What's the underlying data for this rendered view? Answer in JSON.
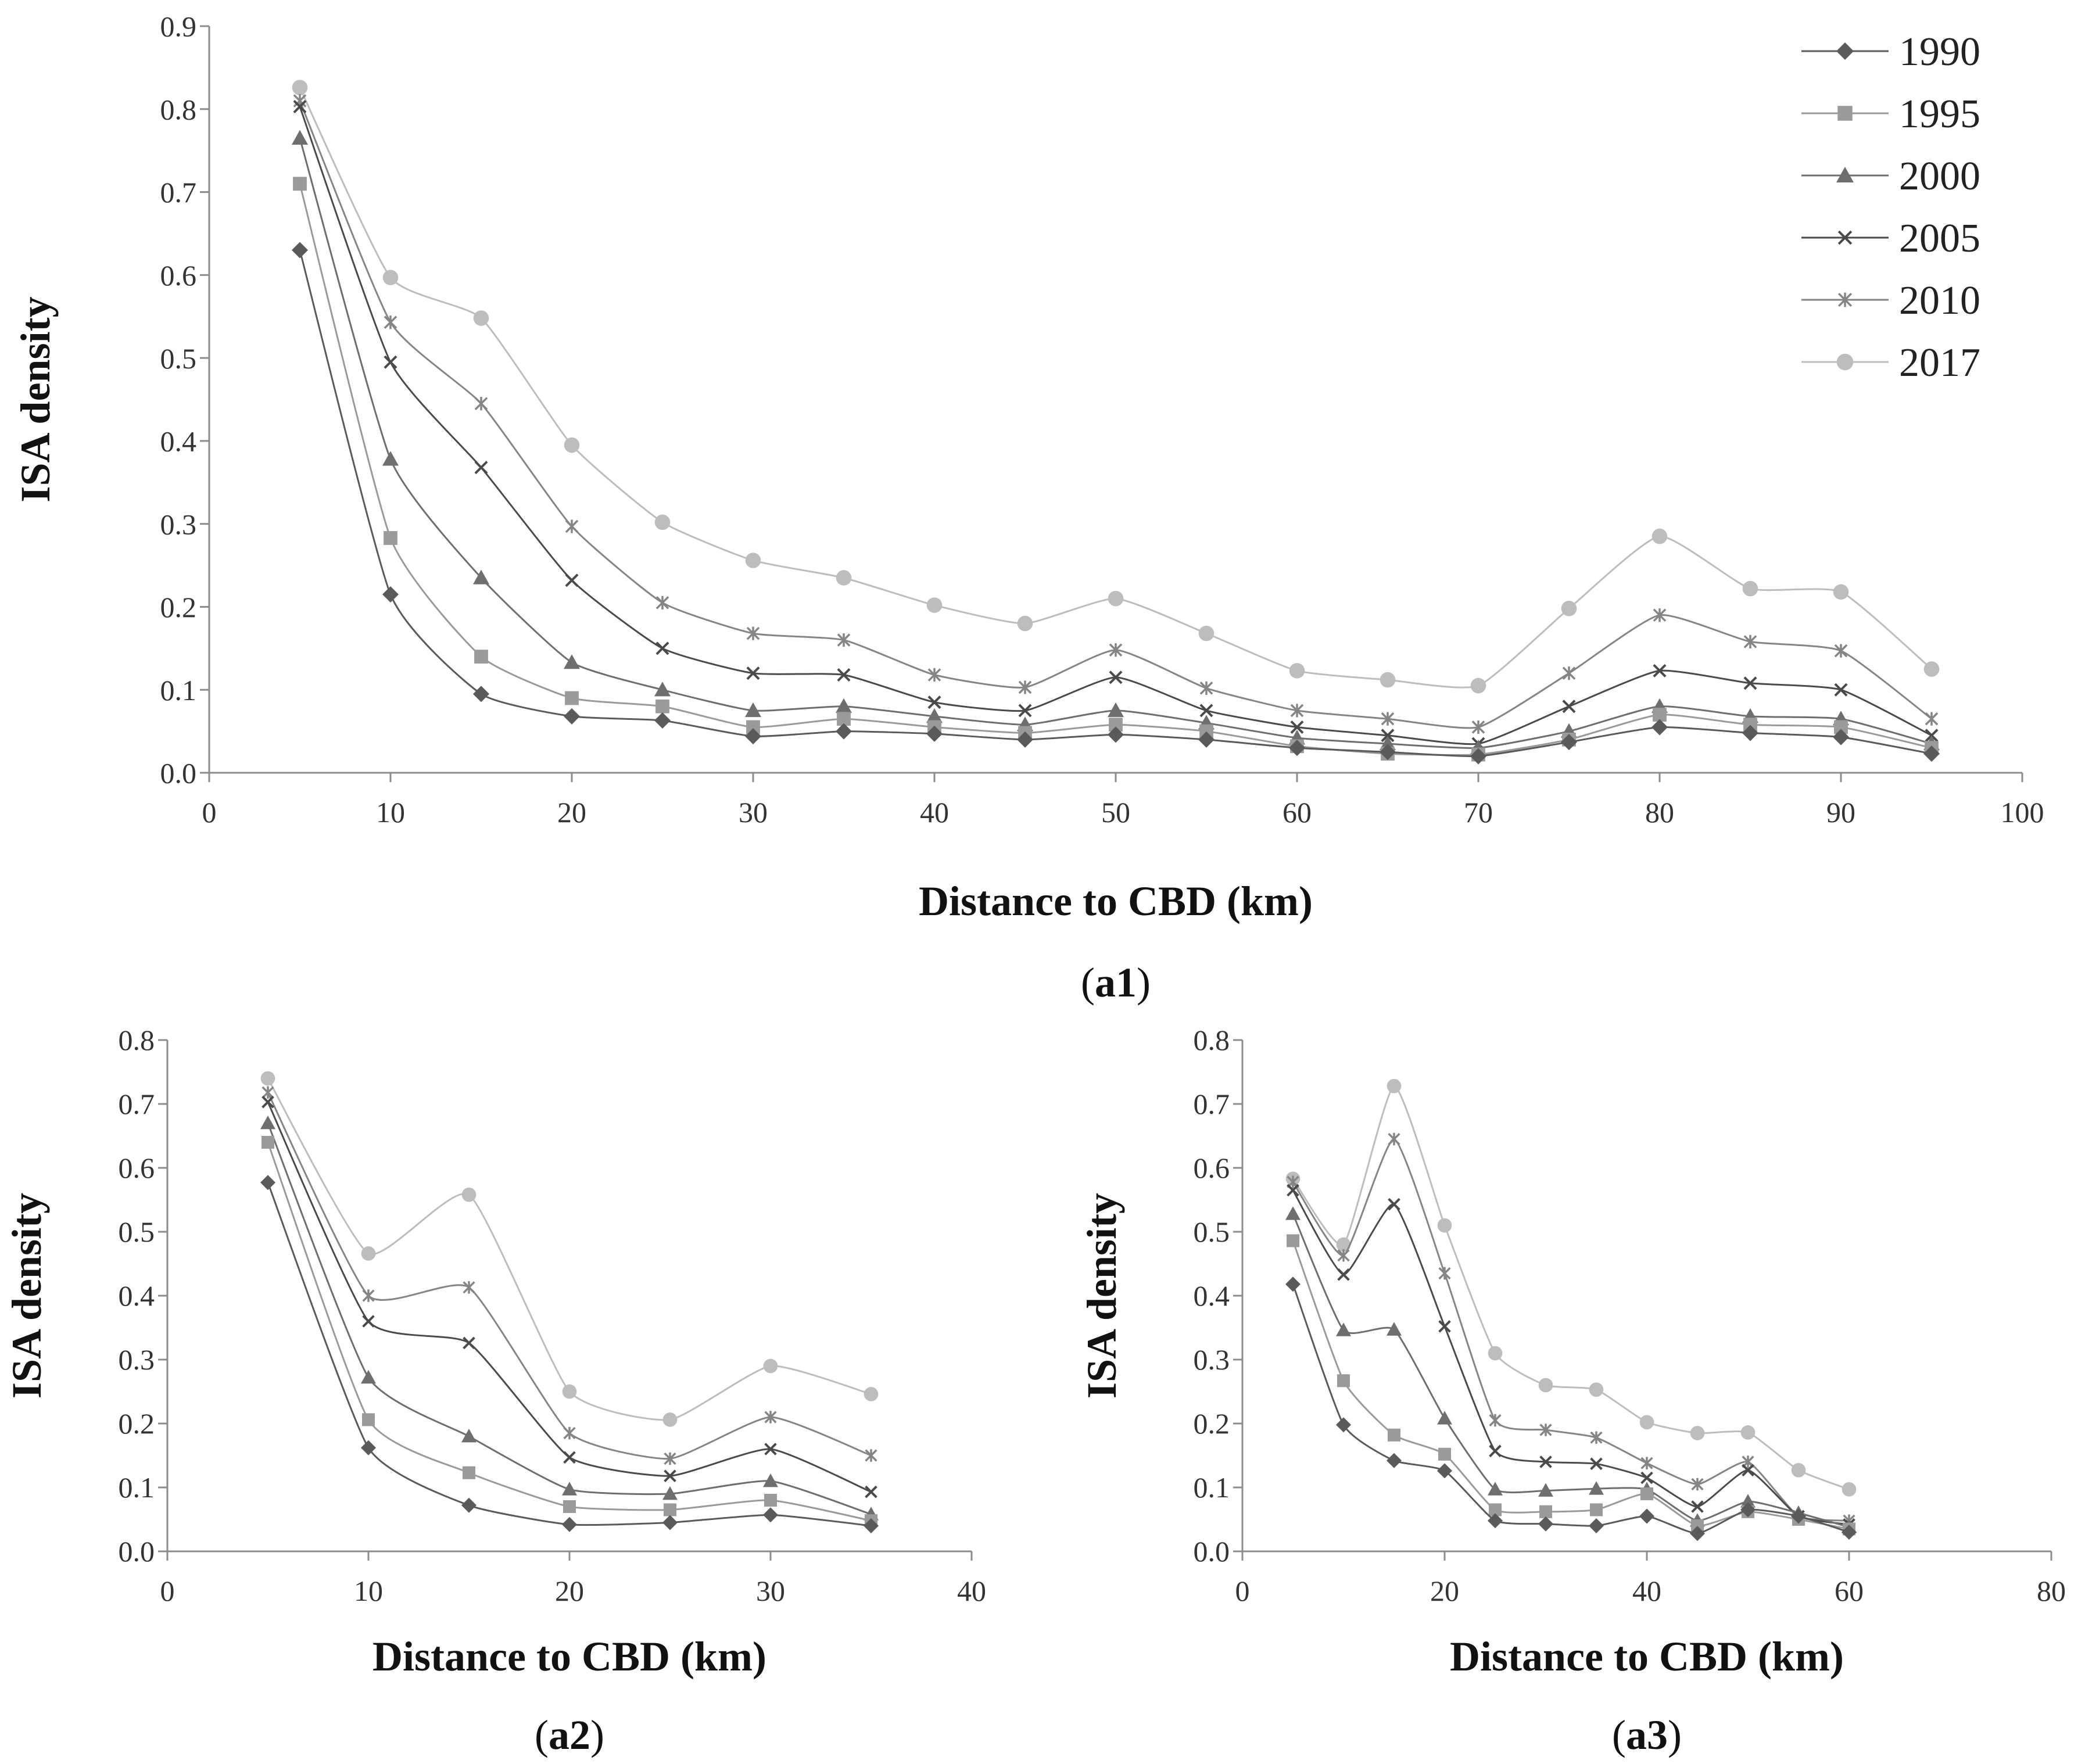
{
  "chart_data": [
    {
      "id": "a1",
      "type": "line",
      "caption_open": "(",
      "caption_label": "a1",
      "caption_close": ")",
      "xlabel": "Distance to CBD (km)",
      "ylabel": "ISA density",
      "xlim": [
        0,
        100
      ],
      "ylim": [
        0,
        0.9
      ],
      "xticks": [
        "0",
        "10",
        "20",
        "30",
        "40",
        "50",
        "60",
        "70",
        "80",
        "90",
        "100"
      ],
      "yticks": [
        "0.0",
        "0.1",
        "0.2",
        "0.3",
        "0.4",
        "0.5",
        "0.6",
        "0.7",
        "0.8",
        "0.9"
      ],
      "legend": "top-right",
      "x": [
        5,
        10,
        15,
        20,
        25,
        30,
        35,
        40,
        45,
        50,
        55,
        60,
        65,
        70,
        75,
        80,
        85,
        90,
        95
      ],
      "series": [
        {
          "name": "1990",
          "marker": "diamond",
          "color": "#5a5a5a",
          "values": [
            0.63,
            0.215,
            0.095,
            0.068,
            0.063,
            0.044,
            0.05,
            0.047,
            0.04,
            0.046,
            0.04,
            0.03,
            0.025,
            0.02,
            0.037,
            0.055,
            0.048,
            0.043,
            0.023
          ]
        },
        {
          "name": "1995",
          "marker": "square",
          "color": "#9a9a9a",
          "values": [
            0.71,
            0.283,
            0.14,
            0.09,
            0.08,
            0.055,
            0.065,
            0.055,
            0.048,
            0.058,
            0.05,
            0.032,
            0.023,
            0.022,
            0.04,
            0.07,
            0.058,
            0.055,
            0.03
          ]
        },
        {
          "name": "2000",
          "marker": "triangle",
          "color": "#6e6e6e",
          "values": [
            0.765,
            0.378,
            0.235,
            0.133,
            0.1,
            0.075,
            0.08,
            0.068,
            0.058,
            0.075,
            0.06,
            0.042,
            0.035,
            0.03,
            0.05,
            0.08,
            0.068,
            0.065,
            0.035
          ]
        },
        {
          "name": "2005",
          "marker": "x",
          "color": "#4a4a4a",
          "values": [
            0.803,
            0.495,
            0.368,
            0.232,
            0.15,
            0.12,
            0.118,
            0.085,
            0.075,
            0.115,
            0.075,
            0.055,
            0.045,
            0.035,
            0.08,
            0.123,
            0.108,
            0.1,
            0.045
          ]
        },
        {
          "name": "2010",
          "marker": "star",
          "color": "#858585",
          "values": [
            0.81,
            0.543,
            0.445,
            0.297,
            0.205,
            0.168,
            0.16,
            0.118,
            0.103,
            0.148,
            0.102,
            0.075,
            0.065,
            0.055,
            0.12,
            0.19,
            0.158,
            0.147,
            0.065
          ]
        },
        {
          "name": "2017",
          "marker": "circle",
          "color": "#bdbdbd",
          "values": [
            0.826,
            0.597,
            0.548,
            0.395,
            0.302,
            0.256,
            0.235,
            0.202,
            0.18,
            0.21,
            0.168,
            0.123,
            0.112,
            0.105,
            0.198,
            0.285,
            0.222,
            0.218,
            0.125
          ]
        }
      ]
    },
    {
      "id": "a2",
      "type": "line",
      "caption_open": "(",
      "caption_label": "a2",
      "caption_close": ")",
      "xlabel": "Distance to CBD (km)",
      "ylabel": "ISA density",
      "xlim": [
        0,
        40
      ],
      "ylim": [
        0,
        0.8
      ],
      "xticks": [
        "0",
        "10",
        "20",
        "30",
        "40"
      ],
      "yticks": [
        "0.0",
        "0.1",
        "0.2",
        "0.3",
        "0.4",
        "0.5",
        "0.6",
        "0.7",
        "0.8"
      ],
      "x": [
        5,
        10,
        15,
        20,
        25,
        30,
        35
      ],
      "series": [
        {
          "name": "1990",
          "marker": "diamond",
          "color": "#5a5a5a",
          "values": [
            0.577,
            0.162,
            0.072,
            0.042,
            0.045,
            0.057,
            0.04
          ]
        },
        {
          "name": "1995",
          "marker": "square",
          "color": "#9a9a9a",
          "values": [
            0.64,
            0.206,
            0.123,
            0.07,
            0.065,
            0.08,
            0.048
          ]
        },
        {
          "name": "2000",
          "marker": "triangle",
          "color": "#6e6e6e",
          "values": [
            0.67,
            0.272,
            0.18,
            0.097,
            0.09,
            0.11,
            0.058
          ]
        },
        {
          "name": "2005",
          "marker": "x",
          "color": "#4a4a4a",
          "values": [
            0.703,
            0.36,
            0.326,
            0.147,
            0.118,
            0.16,
            0.093
          ]
        },
        {
          "name": "2010",
          "marker": "star",
          "color": "#858585",
          "values": [
            0.718,
            0.4,
            0.413,
            0.185,
            0.145,
            0.21,
            0.15
          ]
        },
        {
          "name": "2017",
          "marker": "circle",
          "color": "#bdbdbd",
          "values": [
            0.74,
            0.466,
            0.558,
            0.25,
            0.206,
            0.29,
            0.246
          ]
        }
      ]
    },
    {
      "id": "a3",
      "type": "line",
      "caption_open": "(",
      "caption_label": "a3",
      "caption_close": ")",
      "xlabel": "Distance to CBD (km)",
      "ylabel": "ISA density",
      "xlim": [
        0,
        80
      ],
      "ylim": [
        0,
        0.8
      ],
      "xticks": [
        "0",
        "20",
        "40",
        "60",
        "80"
      ],
      "yticks": [
        "0.0",
        "0.1",
        "0.2",
        "0.3",
        "0.4",
        "0.5",
        "0.6",
        "0.7",
        "0.8"
      ],
      "x": [
        5,
        10,
        15,
        20,
        25,
        30,
        35,
        40,
        45,
        50,
        55,
        60
      ],
      "series": [
        {
          "name": "1990",
          "marker": "diamond",
          "color": "#5a5a5a",
          "values": [
            0.418,
            0.198,
            0.142,
            0.126,
            0.048,
            0.043,
            0.04,
            0.055,
            0.028,
            0.065,
            0.055,
            0.03
          ]
        },
        {
          "name": "1995",
          "marker": "square",
          "color": "#9a9a9a",
          "values": [
            0.486,
            0.267,
            0.182,
            0.152,
            0.065,
            0.062,
            0.065,
            0.09,
            0.04,
            0.062,
            0.05,
            0.035
          ]
        },
        {
          "name": "2000",
          "marker": "triangle",
          "color": "#6e6e6e",
          "values": [
            0.528,
            0.346,
            0.347,
            0.208,
            0.097,
            0.095,
            0.098,
            0.097,
            0.048,
            0.078,
            0.06,
            0.038
          ]
        },
        {
          "name": "2005",
          "marker": "x",
          "color": "#4a4a4a",
          "values": [
            0.565,
            0.433,
            0.543,
            0.352,
            0.157,
            0.14,
            0.137,
            0.115,
            0.07,
            0.127,
            0.055,
            0.042
          ]
        },
        {
          "name": "2010",
          "marker": "star",
          "color": "#858585",
          "values": [
            0.578,
            0.463,
            0.645,
            0.435,
            0.205,
            0.19,
            0.178,
            0.138,
            0.105,
            0.14,
            0.055,
            0.048
          ]
        },
        {
          "name": "2017",
          "marker": "circle",
          "color": "#bdbdbd",
          "values": [
            0.583,
            0.48,
            0.728,
            0.51,
            0.31,
            0.26,
            0.253,
            0.202,
            0.185,
            0.186,
            0.127,
            0.097
          ]
        }
      ]
    }
  ]
}
